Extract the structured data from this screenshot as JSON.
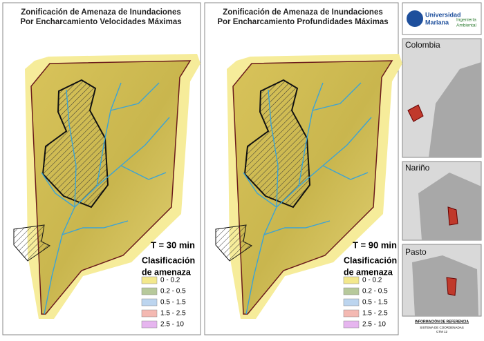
{
  "panels": [
    {
      "title": [
        "Zonificación de Amenaza de Inundaciones",
        "Por Encharcamiento Velocidades Máximas"
      ],
      "period": "T = 30 min",
      "legend": {
        "title": [
          "Clasificación",
          "de amenaza"
        ],
        "items": [
          {
            "label": "0 - 0.2",
            "color": "#f3e88c"
          },
          {
            "label": "0.2 - 0.5",
            "color": "#b7c99b"
          },
          {
            "label": "0.5 - 1.5",
            "color": "#bcd5ef"
          },
          {
            "label": "1.5 - 2.5",
            "color": "#f4b9b2"
          },
          {
            "label": "2.5 - 10",
            "color": "#e6b5ef"
          }
        ]
      }
    },
    {
      "title": [
        "Zonificación de Amenaza de Inundaciones",
        "Por Encharcamiento Profundidades Máximas"
      ],
      "period": "T = 90 min",
      "legend": {
        "title": [
          "Clasificación",
          "de amenaza"
        ],
        "items": [
          {
            "label": "0 - 0.2",
            "color": "#f3e88c"
          },
          {
            "label": "0.2 - 0.5",
            "color": "#b7c99b"
          },
          {
            "label": "0.5 - 1.5",
            "color": "#bcd5ef"
          },
          {
            "label": "1.5 - 2.5",
            "color": "#f4b9b2"
          },
          {
            "label": "2.5 - 10",
            "color": "#e6b5ef"
          }
        ]
      }
    }
  ],
  "logo": {
    "name": [
      "Universidad",
      "Mariana"
    ],
    "faculty": [
      "Ingeniería",
      "Ambiental"
    ]
  },
  "insets": [
    {
      "label": "Colombia"
    },
    {
      "label": "Nariño"
    },
    {
      "label": "Pasto"
    }
  ],
  "footer": {
    "title": "INFORMACIÓN DE REFERENCIA",
    "lines": [
      "SISTEMA DE COORDENADAS",
      "CTM 12"
    ]
  }
}
